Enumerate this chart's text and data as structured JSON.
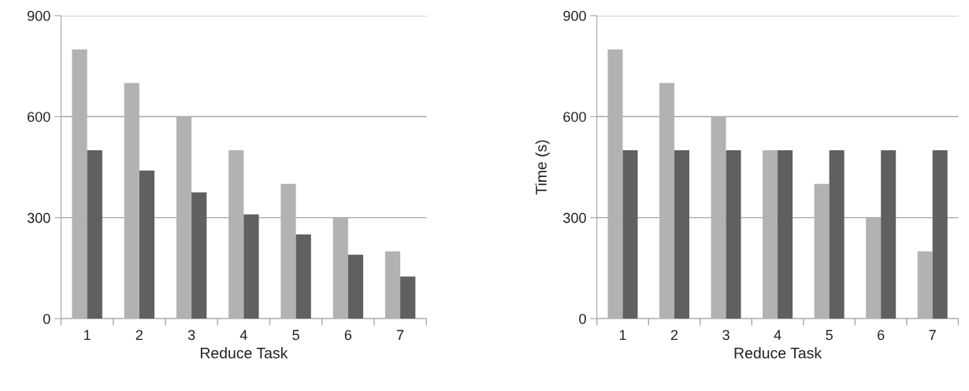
{
  "chart_data": [
    {
      "type": "bar",
      "xlabel": "Reduce Task",
      "categories": [
        "1",
        "2",
        "3",
        "4",
        "5",
        "6",
        "7"
      ],
      "series": [
        {
          "color": "#b2b2b2",
          "values": [
            800,
            700,
            600,
            500,
            400,
            300,
            200
          ]
        },
        {
          "color": "#606060",
          "values": [
            500,
            440,
            375,
            310,
            250,
            190,
            125
          ]
        }
      ],
      "ylim": [
        0,
        900
      ],
      "yticks": [
        0,
        300,
        600,
        900
      ],
      "grid": "y"
    },
    {
      "type": "bar",
      "xlabel": "Reduce Task",
      "ylabel": "Time (s)",
      "categories": [
        "1",
        "2",
        "3",
        "4",
        "5",
        "6",
        "7"
      ],
      "series": [
        {
          "color": "#b2b2b2",
          "values": [
            800,
            700,
            600,
            500,
            400,
            300,
            200
          ]
        },
        {
          "color": "#606060",
          "values": [
            500,
            500,
            500,
            500,
            500,
            500,
            500
          ]
        }
      ],
      "ylim": [
        0,
        900
      ],
      "yticks": [
        0,
        300,
        600,
        900
      ],
      "grid": "y"
    }
  ]
}
